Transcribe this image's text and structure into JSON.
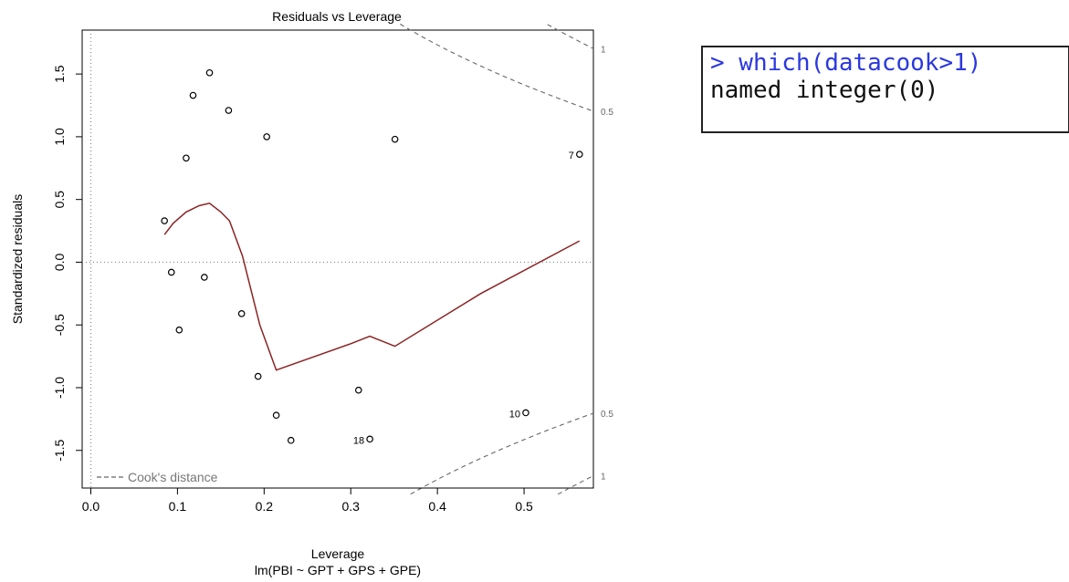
{
  "chart_data": {
    "type": "scatter",
    "title": "Residuals vs Leverage",
    "xlabel": "Leverage",
    "subtitle": "lm(PBI ~ GPT + GPS + GPE)",
    "ylabel": "Standardized residuals",
    "xlim": [
      -0.01,
      0.58
    ],
    "ylim": [
      -1.8,
      1.85
    ],
    "xticks": [
      "0.0",
      "0.1",
      "0.2",
      "0.3",
      "0.4",
      "0.5"
    ],
    "xtick_values": [
      0,
      0.1,
      0.2,
      0.3,
      0.4,
      0.5
    ],
    "yticks": [
      "-1.5",
      "-1.0",
      "-0.5",
      "0.0",
      "0.5",
      "1.0",
      "1.5"
    ],
    "ytick_values": [
      -1.5,
      -1.0,
      -0.5,
      0.0,
      0.5,
      1.0,
      1.5
    ],
    "points": [
      {
        "x": 0.085,
        "y": 0.33,
        "label": ""
      },
      {
        "x": 0.093,
        "y": -0.08,
        "label": ""
      },
      {
        "x": 0.102,
        "y": -0.54,
        "label": ""
      },
      {
        "x": 0.11,
        "y": 0.83,
        "label": ""
      },
      {
        "x": 0.118,
        "y": 1.33,
        "label": ""
      },
      {
        "x": 0.131,
        "y": -0.12,
        "label": ""
      },
      {
        "x": 0.137,
        "y": 1.51,
        "label": ""
      },
      {
        "x": 0.159,
        "y": 1.21,
        "label": ""
      },
      {
        "x": 0.174,
        "y": -0.41,
        "label": ""
      },
      {
        "x": 0.193,
        "y": -0.91,
        "label": ""
      },
      {
        "x": 0.203,
        "y": 1.0,
        "label": ""
      },
      {
        "x": 0.214,
        "y": -1.22,
        "label": ""
      },
      {
        "x": 0.231,
        "y": -1.42,
        "label": ""
      },
      {
        "x": 0.309,
        "y": -1.02,
        "label": ""
      },
      {
        "x": 0.322,
        "y": -1.41,
        "label": "18"
      },
      {
        "x": 0.351,
        "y": 0.98,
        "label": ""
      },
      {
        "x": 0.502,
        "y": -1.2,
        "label": "10"
      },
      {
        "x": 0.564,
        "y": 0.86,
        "label": "7"
      }
    ],
    "smooth_line": {
      "x": [
        0.085,
        0.095,
        0.11,
        0.125,
        0.137,
        0.15,
        0.16,
        0.175,
        0.195,
        0.214,
        0.3,
        0.322,
        0.351,
        0.45,
        0.564
      ],
      "y": [
        0.22,
        0.31,
        0.4,
        0.45,
        0.47,
        0.4,
        0.33,
        0.05,
        -0.5,
        -0.86,
        -0.65,
        -0.59,
        -0.67,
        -0.25,
        0.17
      ]
    },
    "cooks_contours": [
      {
        "level": "0.5",
        "side": "upper",
        "label": "0.5"
      },
      {
        "level": "1",
        "side": "upper",
        "label": "1"
      },
      {
        "level": "0.5",
        "side": "lower",
        "label": "0.5"
      },
      {
        "level": "1",
        "side": "lower",
        "label": "1"
      }
    ],
    "legend": {
      "text": "Cook's distance",
      "placement": "bottom-left"
    },
    "reference_lines": {
      "horizontal_y": 0,
      "vertical_x": 0
    },
    "grid": false,
    "colors": {
      "points": "#000000",
      "smooth": "#8b2323",
      "cooks": "#666666",
      "reference": "#888888"
    }
  },
  "console": {
    "command": "> which(datacook>1)",
    "output": "named integer(0)",
    "command_color": "#2b38e0"
  }
}
